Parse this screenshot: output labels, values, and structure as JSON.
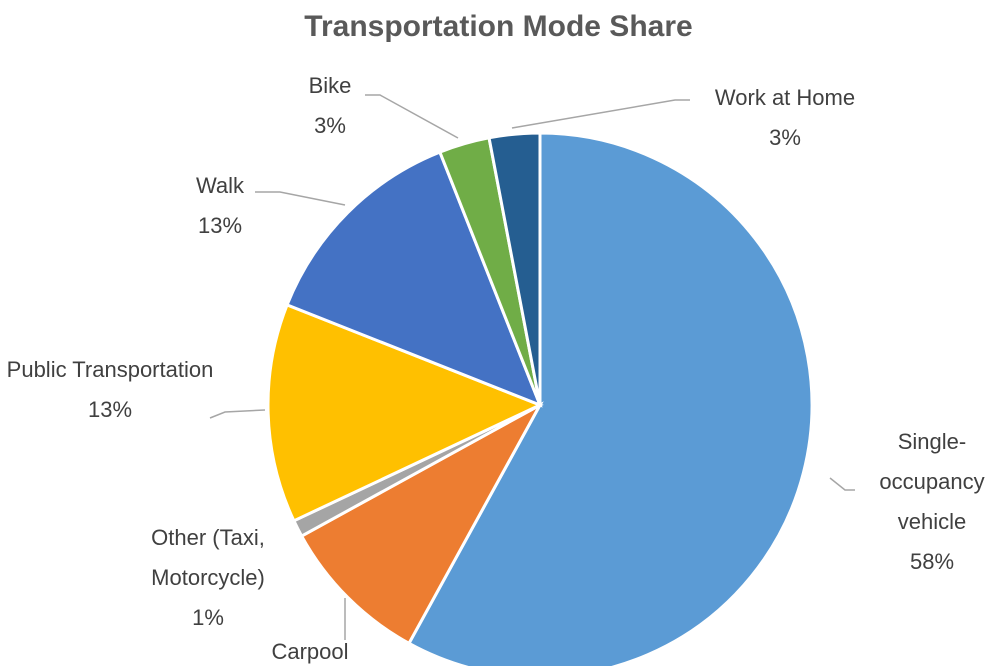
{
  "chart_data": {
    "type": "pie",
    "title": "Transportation Mode Share",
    "categories": [
      "Single-occupancy vehicle",
      "Carpool",
      "Other (Taxi, Motorcycle)",
      "Public Transportation",
      "Walk",
      "Bike",
      "Work at Home"
    ],
    "values": [
      58,
      9,
      1,
      13,
      13,
      3,
      3
    ],
    "value_labels": [
      "58%",
      null,
      "1%",
      "13%",
      "13%",
      "3%",
      "3%"
    ],
    "colors": [
      "#5b9bd5",
      "#ed7d31",
      "#a5a5a5",
      "#ffc000",
      "#4472c4",
      "#70ad47",
      "#255e91"
    ]
  }
}
